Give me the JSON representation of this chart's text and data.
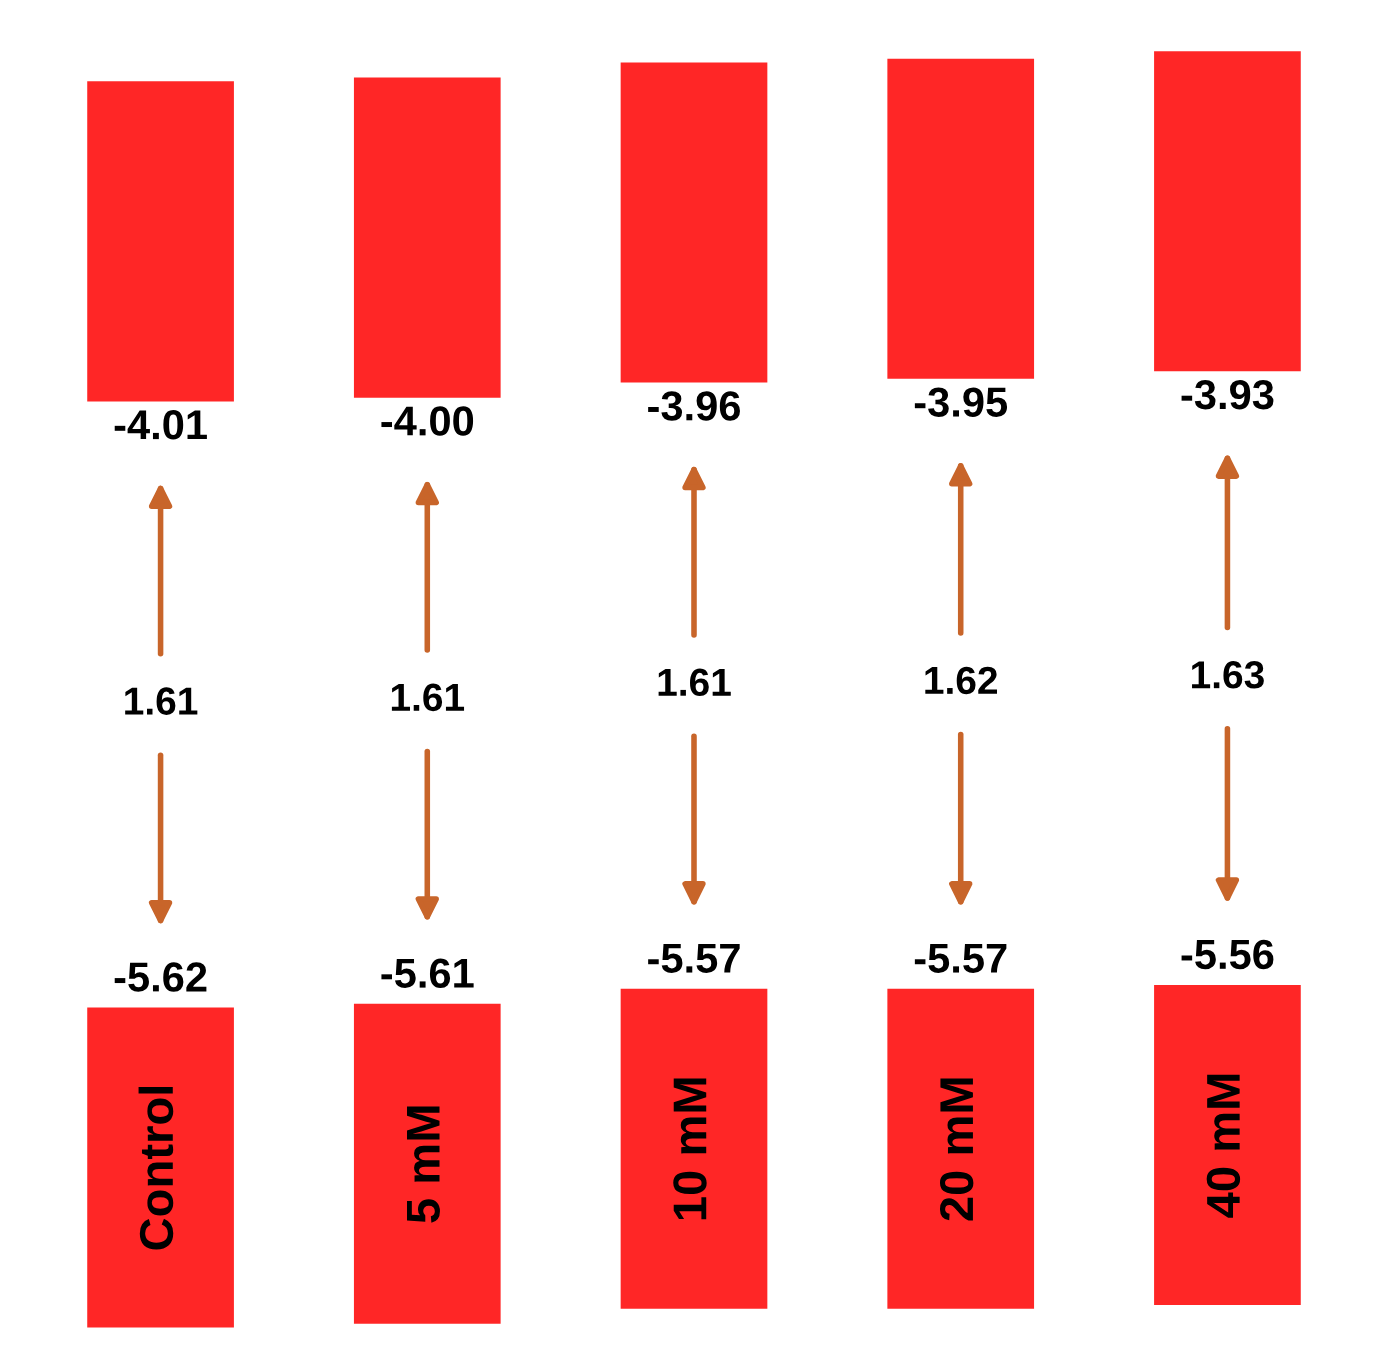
{
  "chart_data": {
    "type": "other",
    "categories": [
      "Control",
      "5 mM",
      "10 mM",
      "20 mM",
      "40 mM"
    ],
    "series": [
      {
        "color": "#ff0000",
        "values": [
          -4.01,
          -4.0,
          -3.96,
          -3.95,
          -3.93
        ],
        "value_labels": [
          "-4.01",
          "-4.00",
          "-3.96",
          "-3.95",
          "-3.93"
        ]
      },
      {
        "color": "#ff0000",
        "values": [
          -5.62,
          -5.61,
          -5.57,
          -5.57,
          -5.56
        ],
        "value_labels": [
          "-5.62",
          "-5.61",
          "-5.57",
          "-5.57",
          "-5.56"
        ]
      }
    ],
    "annotations": [
      "1.61",
      "1.61",
      "1.61",
      "1.62",
      "1.63"
    ]
  }
}
